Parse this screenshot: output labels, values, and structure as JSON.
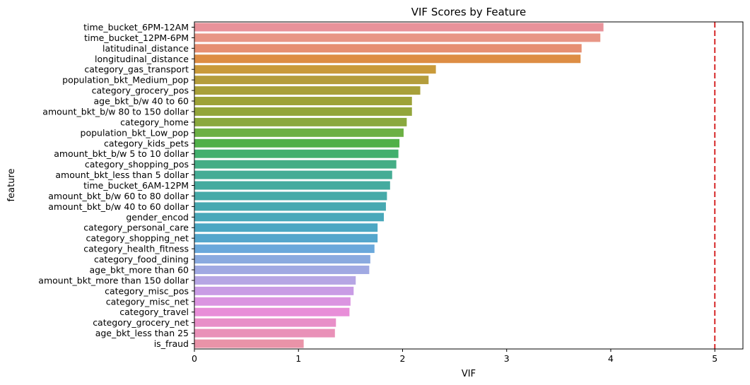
{
  "chart_data": {
    "type": "bar",
    "orientation": "horizontal",
    "title": "VIF Scores by Feature",
    "xlabel": "VIF",
    "ylabel": "feature",
    "xlim": [
      0,
      5.27
    ],
    "xticks": [
      0,
      1,
      2,
      3,
      4,
      5
    ],
    "grid": false,
    "legend": "none",
    "reference_line": {
      "x": 5,
      "color": "#d62728",
      "style": "dashed"
    },
    "categories": [
      "time_bucket_6PM-12AM",
      "time_bucket_12PM-6PM",
      "latitudinal_distance",
      "longitudinal_distance",
      "category_gas_transport",
      "population_bkt_Medium_pop",
      "category_grocery_pos",
      "age_bkt_b/w 40 to 60",
      "amount_bkt_b/w 80 to 150 dollar",
      "category_home",
      "population_bkt_Low_pop",
      "category_kids_pets",
      "amount_bkt_b/w 5 to 10 dollar",
      "category_shopping_pos",
      "amount_bkt_less than 5 dollar",
      "time_bucket_6AM-12PM",
      "amount_bkt_b/w 60 to 80 dollar",
      "amount_bkt_b/w 40 to 60 dollar",
      "gender_encod",
      "category_personal_care",
      "category_shopping_net",
      "category_health_fitness",
      "category_food_dining",
      "age_bkt_more than 60",
      "amount_bkt_more than 150 dollar",
      "category_misc_pos",
      "category_misc_net",
      "category_travel",
      "category_grocery_net",
      "age_bkt_less than 25",
      "is_fraud"
    ],
    "values": [
      3.93,
      3.9,
      3.72,
      3.71,
      2.32,
      2.25,
      2.17,
      2.09,
      2.09,
      2.04,
      2.01,
      1.97,
      1.96,
      1.94,
      1.9,
      1.88,
      1.85,
      1.84,
      1.82,
      1.76,
      1.76,
      1.73,
      1.69,
      1.68,
      1.55,
      1.53,
      1.5,
      1.49,
      1.36,
      1.35,
      1.05
    ],
    "colors": [
      "#e8929a",
      "#e89686",
      "#e68f72",
      "#dd8d44",
      "#c99a3a",
      "#b49d3c",
      "#a8a03a",
      "#9da238",
      "#93a53b",
      "#8aa83e",
      "#6cb044",
      "#50b048",
      "#42af6d",
      "#44ad85",
      "#45ac95",
      "#45ab9f",
      "#46aaa8",
      "#47a9b1",
      "#49a8ba",
      "#4ca7c3",
      "#54a6cc",
      "#6aa8db",
      "#8aaadf",
      "#a0a9e2",
      "#b6a6e4",
      "#c99ce5",
      "#db94e1",
      "#e88ed8",
      "#e88fc8",
      "#e991b8",
      "#e993a8"
    ]
  }
}
